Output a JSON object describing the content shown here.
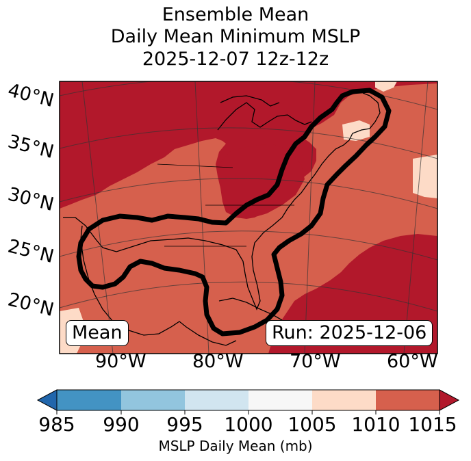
{
  "title": {
    "line1": "Ensemble Mean",
    "line2": "Daily Mean Minimum MSLP",
    "line3": "2025-12-07 12z-12z"
  },
  "map": {
    "lat_labels": [
      "40°N",
      "35°N",
      "30°N",
      "25°N",
      "20°N"
    ],
    "lon_labels": [
      "90°W",
      "80°W",
      "70°W",
      "60°W"
    ],
    "mean_tag": "Mean",
    "run_tag": "Run: 2025-12-06",
    "contour_level_mb": 1010
  },
  "colorbar": {
    "label": "MSLP Daily Mean (mb)",
    "ticks": [
      "985",
      "990",
      "995",
      "1000",
      "1005",
      "1010",
      "1015"
    ],
    "bins": [
      {
        "range": "<985",
        "color": "#2166ac"
      },
      {
        "range": "985-990",
        "color": "#4393c3"
      },
      {
        "range": "990-995",
        "color": "#92c5de"
      },
      {
        "range": "995-1000",
        "color": "#d1e5f0"
      },
      {
        "range": "1000-1005",
        "color": "#f7f7f7"
      },
      {
        "range": "1005-1010",
        "color": "#fddbc7"
      },
      {
        "range": "1010-1015",
        "color": "#d6604d"
      },
      {
        "range": ">1015",
        "color": "#b2182b"
      }
    ]
  }
}
